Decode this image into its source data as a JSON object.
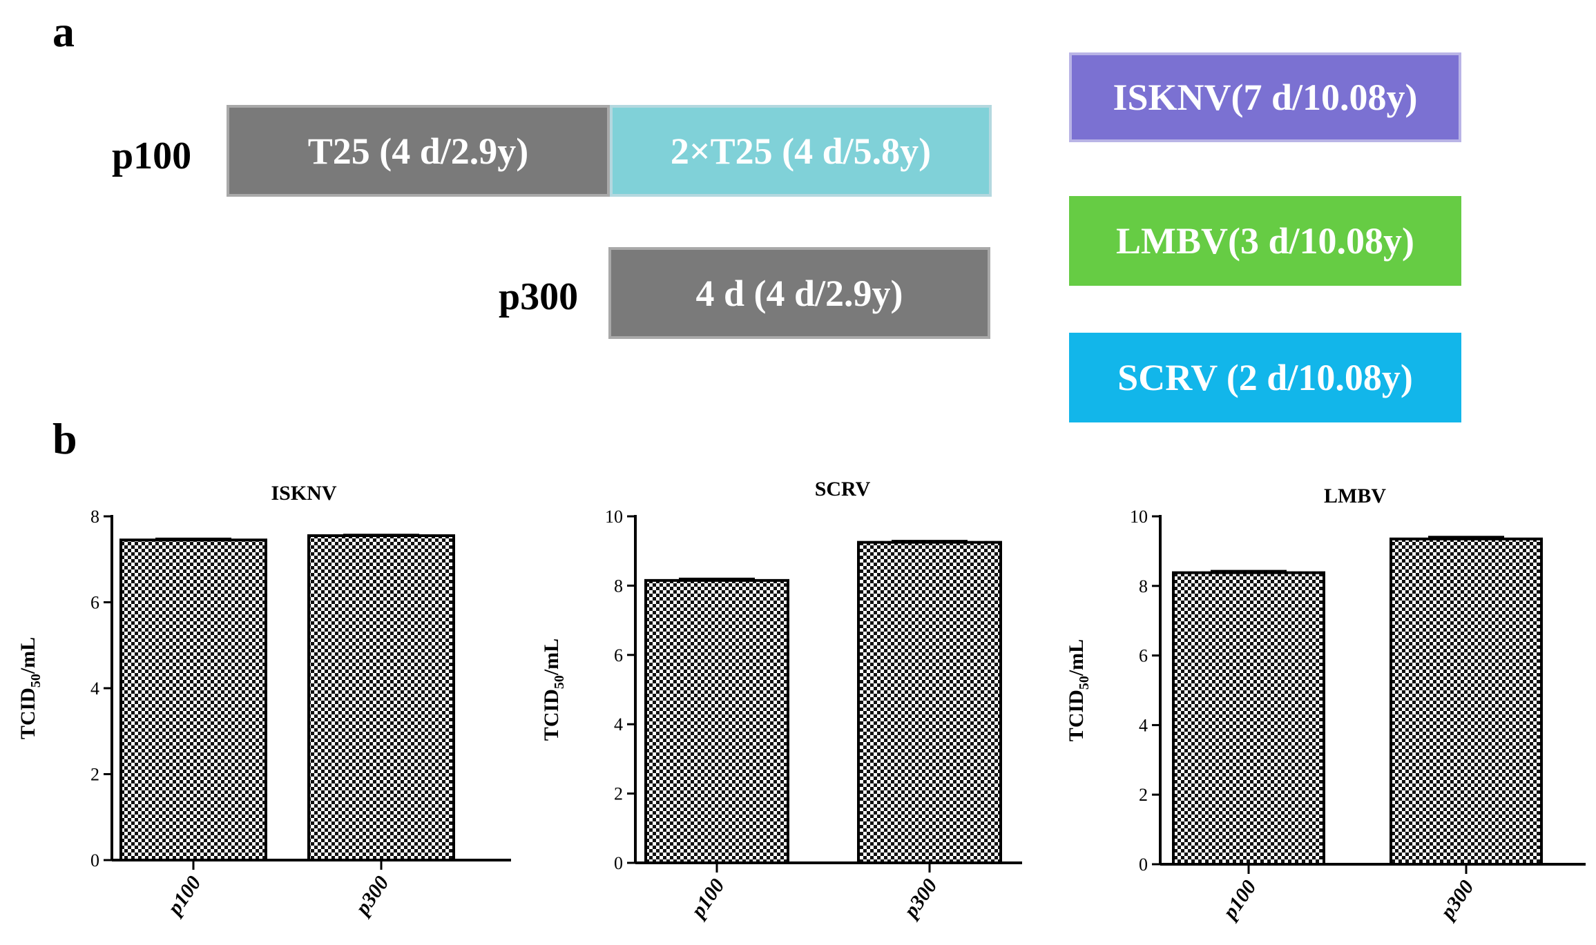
{
  "panel_a": {
    "letter": "a",
    "p100_label": "p100",
    "p300_label": "p300",
    "p100_box1": "T25 (4 d/2.9y)",
    "p100_box2": "2×T25 (4 d/5.8y)",
    "p300_box": "4 d (4 d/2.9y)",
    "legend": [
      {
        "label": "ISKNV(7 d/10.08y)",
        "color": "#7b71d2"
      },
      {
        "label": "LMBV(3 d/10.08y)",
        "color": "#66cc44"
      },
      {
        "label": "SCRV (2 d/10.08y)",
        "color": "#12b6ea"
      }
    ],
    "colors": {
      "gray": "#7a7a7a",
      "teal": "#80d1d8"
    }
  },
  "panel_b": {
    "letter": "b"
  },
  "chart_data": [
    {
      "type": "bar",
      "title": "ISKNV",
      "ylabel_main": "TCID",
      "ylabel_sub": "50",
      "ylabel_tail": "/mL",
      "categories": [
        "p100",
        "p300"
      ],
      "values": [
        7.45,
        7.55
      ],
      "errors": [
        0.03,
        0.02
      ],
      "ylim": [
        0,
        8
      ],
      "yticks": [
        "0",
        "2",
        "4",
        "6",
        "8"
      ]
    },
    {
      "type": "bar",
      "title": "SCRV",
      "ylabel_main": "TCID",
      "ylabel_sub": "50",
      "ylabel_tail": "/mL",
      "categories": [
        "p100",
        "p300"
      ],
      "values": [
        8.15,
        9.25
      ],
      "errors": [
        0.05,
        0.04
      ],
      "ylim": [
        0,
        10
      ],
      "yticks": [
        "0",
        "2",
        "4",
        "6",
        "8",
        "10"
      ]
    },
    {
      "type": "bar",
      "title": "LMBV",
      "ylabel_main": "TCID",
      "ylabel_sub": "50",
      "ylabel_tail": "/mL",
      "categories": [
        "p100",
        "p300"
      ],
      "values": [
        8.38,
        9.35
      ],
      "errors": [
        0.05,
        0.06
      ],
      "ylim": [
        0,
        10
      ],
      "yticks": [
        "0",
        "2",
        "4",
        "6",
        "8",
        "10"
      ]
    }
  ]
}
